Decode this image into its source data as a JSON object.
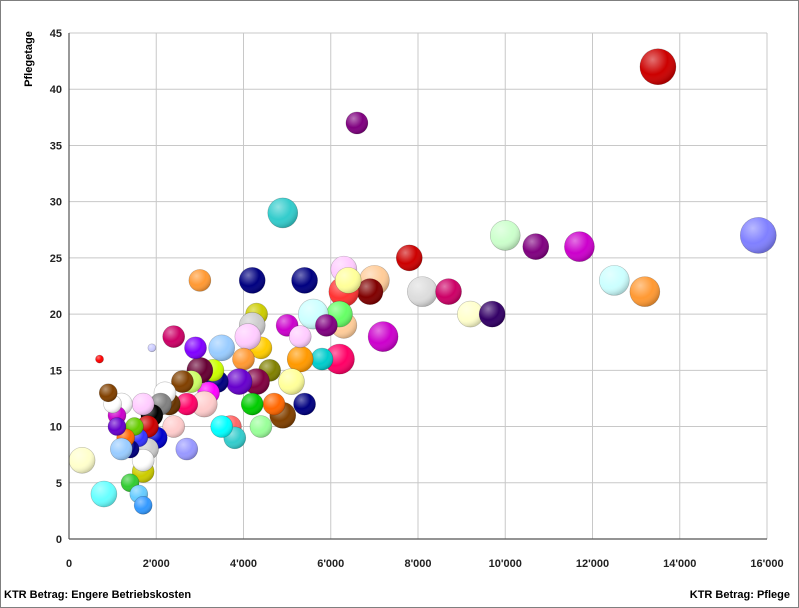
{
  "chart_data": {
    "type": "scatter",
    "bubble": true,
    "ylabel": "Pflegetage",
    "xlabel_left": "KTR Betrag: Engere Betriebskosten",
    "xlabel_right": "KTR Betrag: Pflege",
    "xlim": [
      0,
      16000
    ],
    "ylim": [
      0,
      45
    ],
    "xticks": [
      0,
      2000,
      4000,
      6000,
      8000,
      10000,
      12000,
      14000,
      16000
    ],
    "xtick_labels": [
      "0",
      "2'000",
      "4'000",
      "6'000",
      "8'000",
      "10'000",
      "12'000",
      "14'000",
      "16'000"
    ],
    "yticks": [
      0,
      5,
      10,
      15,
      20,
      25,
      30,
      35,
      40,
      45
    ],
    "ytick_labels": [
      "0",
      "5",
      "10",
      "15",
      "20",
      "25",
      "30",
      "35",
      "40",
      "45"
    ],
    "grid": true,
    "legend": false,
    "points": [
      {
        "x": 13500,
        "y": 42,
        "color": "#cc0000",
        "size": "xl"
      },
      {
        "x": 6600,
        "y": 37,
        "color": "#7f007f",
        "size": "s"
      },
      {
        "x": 4900,
        "y": 29,
        "color": "#33cccc",
        "size": "l"
      },
      {
        "x": 15800,
        "y": 27,
        "color": "#8080ff",
        "size": "xl"
      },
      {
        "x": 10000,
        "y": 27,
        "color": "#ccffcc",
        "size": "l"
      },
      {
        "x": 10700,
        "y": 26,
        "color": "#800080",
        "size": "m"
      },
      {
        "x": 11700,
        "y": 26,
        "color": "#cc00cc",
        "size": "l"
      },
      {
        "x": 7800,
        "y": 25,
        "color": "#cc0000",
        "size": "m"
      },
      {
        "x": 12500,
        "y": 23,
        "color": "#ccffff",
        "size": "l"
      },
      {
        "x": 13200,
        "y": 22,
        "color": "#ff9933",
        "size": "l"
      },
      {
        "x": 8100,
        "y": 22,
        "color": "#dddddd",
        "size": "l"
      },
      {
        "x": 8700,
        "y": 22,
        "color": "#cc0066",
        "size": "m"
      },
      {
        "x": 9200,
        "y": 20,
        "color": "#ffffcc",
        "size": "m"
      },
      {
        "x": 9700,
        "y": 20,
        "color": "#330066",
        "size": "m"
      },
      {
        "x": 7000,
        "y": 23,
        "color": "#ffcc99",
        "size": "l"
      },
      {
        "x": 6900,
        "y": 22,
        "color": "#800000",
        "size": "m"
      },
      {
        "x": 6300,
        "y": 22,
        "color": "#ff3333",
        "size": "l"
      },
      {
        "x": 6300,
        "y": 24,
        "color": "#ffccff",
        "size": "m"
      },
      {
        "x": 6400,
        "y": 23,
        "color": "#ffff99",
        "size": "m"
      },
      {
        "x": 7200,
        "y": 18,
        "color": "#cc00cc",
        "size": "l"
      },
      {
        "x": 6200,
        "y": 16,
        "color": "#ff0066",
        "size": "l"
      },
      {
        "x": 6300,
        "y": 19,
        "color": "#ffcc99",
        "size": "m"
      },
      {
        "x": 6200,
        "y": 20,
        "color": "#66ff66",
        "size": "m"
      },
      {
        "x": 5600,
        "y": 20,
        "color": "#ccffff",
        "size": "l"
      },
      {
        "x": 5400,
        "y": 23,
        "color": "#000080",
        "size": "m"
      },
      {
        "x": 4200,
        "y": 23,
        "color": "#000080",
        "size": "m"
      },
      {
        "x": 3000,
        "y": 23,
        "color": "#ff9933",
        "size": "s"
      },
      {
        "x": 5800,
        "y": 16,
        "color": "#00cccc",
        "size": "s"
      },
      {
        "x": 5900,
        "y": 19,
        "color": "#800080",
        "size": "s"
      },
      {
        "x": 5400,
        "y": 12,
        "color": "#000080",
        "size": "s"
      },
      {
        "x": 5300,
        "y": 16,
        "color": "#ff9900",
        "size": "m"
      },
      {
        "x": 5000,
        "y": 19,
        "color": "#cc00cc",
        "size": "s"
      },
      {
        "x": 5300,
        "y": 18,
        "color": "#ffccff",
        "size": "s"
      },
      {
        "x": 5100,
        "y": 14,
        "color": "#ffff99",
        "size": "m"
      },
      {
        "x": 4900,
        "y": 11,
        "color": "#804000",
        "size": "m"
      },
      {
        "x": 4700,
        "y": 12,
        "color": "#ff6600",
        "size": "s"
      },
      {
        "x": 4600,
        "y": 15,
        "color": "#808000",
        "size": "s"
      },
      {
        "x": 4400,
        "y": 17,
        "color": "#ffcc00",
        "size": "s"
      },
      {
        "x": 4300,
        "y": 20,
        "color": "#cccc00",
        "size": "s"
      },
      {
        "x": 4200,
        "y": 19,
        "color": "#cccccc",
        "size": "m"
      },
      {
        "x": 4100,
        "y": 18,
        "color": "#ffccff",
        "size": "m"
      },
      {
        "x": 4300,
        "y": 14,
        "color": "#800040",
        "size": "m"
      },
      {
        "x": 4200,
        "y": 12,
        "color": "#00cc00",
        "size": "s"
      },
      {
        "x": 4400,
        "y": 10,
        "color": "#99ff99",
        "size": "s"
      },
      {
        "x": 4000,
        "y": 16,
        "color": "#ff9933",
        "size": "s"
      },
      {
        "x": 3900,
        "y": 14,
        "color": "#6600cc",
        "size": "m"
      },
      {
        "x": 3700,
        "y": 10,
        "color": "#ff6666",
        "size": "s"
      },
      {
        "x": 3800,
        "y": 9,
        "color": "#33cccc",
        "size": "s"
      },
      {
        "x": 3500,
        "y": 10,
        "color": "#00ffff",
        "size": "s"
      },
      {
        "x": 3400,
        "y": 14,
        "color": "#000080",
        "size": "s"
      },
      {
        "x": 3500,
        "y": 17,
        "color": "#99ccff",
        "size": "m"
      },
      {
        "x": 3300,
        "y": 15,
        "color": "#ccff00",
        "size": "s"
      },
      {
        "x": 3200,
        "y": 13,
        "color": "#ff00ff",
        "size": "s"
      },
      {
        "x": 3100,
        "y": 12,
        "color": "#ffcccc",
        "size": "m"
      },
      {
        "x": 3000,
        "y": 15,
        "color": "#660033",
        "size": "m"
      },
      {
        "x": 2900,
        "y": 17,
        "color": "#8000ff",
        "size": "s"
      },
      {
        "x": 2800,
        "y": 14,
        "color": "#ccff66",
        "size": "s"
      },
      {
        "x": 2700,
        "y": 12,
        "color": "#ff0066",
        "size": "s"
      },
      {
        "x": 2600,
        "y": 14,
        "color": "#804000",
        "size": "s"
      },
      {
        "x": 2700,
        "y": 8,
        "color": "#9999ff",
        "size": "s"
      },
      {
        "x": 2400,
        "y": 18,
        "color": "#cc0066",
        "size": "s"
      },
      {
        "x": 2400,
        "y": 10,
        "color": "#ffcccc",
        "size": "s"
      },
      {
        "x": 2300,
        "y": 12,
        "color": "#663300",
        "size": "s"
      },
      {
        "x": 2200,
        "y": 13,
        "color": "#ffffff",
        "size": "s"
      },
      {
        "x": 2100,
        "y": 12,
        "color": "#808080",
        "size": "s"
      },
      {
        "x": 2000,
        "y": 9,
        "color": "#0000cc",
        "size": "s"
      },
      {
        "x": 1900,
        "y": 11,
        "color": "#000000",
        "size": "s"
      },
      {
        "x": 1800,
        "y": 10,
        "color": "#cc0000",
        "size": "s"
      },
      {
        "x": 1700,
        "y": 12,
        "color": "#ffccff",
        "size": "s"
      },
      {
        "x": 1700,
        "y": 6,
        "color": "#cccc00",
        "size": "s"
      },
      {
        "x": 1800,
        "y": 8,
        "color": "#cccccc",
        "size": "s"
      },
      {
        "x": 1700,
        "y": 7,
        "color": "#ffffff",
        "size": "s"
      },
      {
        "x": 1600,
        "y": 9,
        "color": "#3333ff",
        "size": "xs"
      },
      {
        "x": 1500,
        "y": 10,
        "color": "#66cc00",
        "size": "xs"
      },
      {
        "x": 1400,
        "y": 8,
        "color": "#000080",
        "size": "xs"
      },
      {
        "x": 1300,
        "y": 9,
        "color": "#ff6600",
        "size": "xs"
      },
      {
        "x": 1200,
        "y": 8,
        "color": "#99ccff",
        "size": "s"
      },
      {
        "x": 1200,
        "y": 12,
        "color": "#ffffff",
        "size": "s"
      },
      {
        "x": 1100,
        "y": 11,
        "color": "#cc00cc",
        "size": "xs"
      },
      {
        "x": 1000,
        "y": 12,
        "color": "#ffffff",
        "size": "xs"
      },
      {
        "x": 900,
        "y": 13,
        "color": "#804000",
        "size": "xs"
      },
      {
        "x": 1100,
        "y": 10,
        "color": "#6600cc",
        "size": "xs"
      },
      {
        "x": 1400,
        "y": 5,
        "color": "#33cc33",
        "size": "xs"
      },
      {
        "x": 1600,
        "y": 4,
        "color": "#66ccff",
        "size": "xs"
      },
      {
        "x": 1700,
        "y": 3,
        "color": "#3399ff",
        "size": "xs"
      },
      {
        "x": 800,
        "y": 4,
        "color": "#66ffff",
        "size": "m"
      },
      {
        "x": 300,
        "y": 7,
        "color": "#ffffcc",
        "size": "m"
      },
      {
        "x": 700,
        "y": 16,
        "color": "#ff0000",
        "size": "xxs"
      },
      {
        "x": 1900,
        "y": 17,
        "color": "#ccccff",
        "size": "xxs"
      }
    ]
  }
}
